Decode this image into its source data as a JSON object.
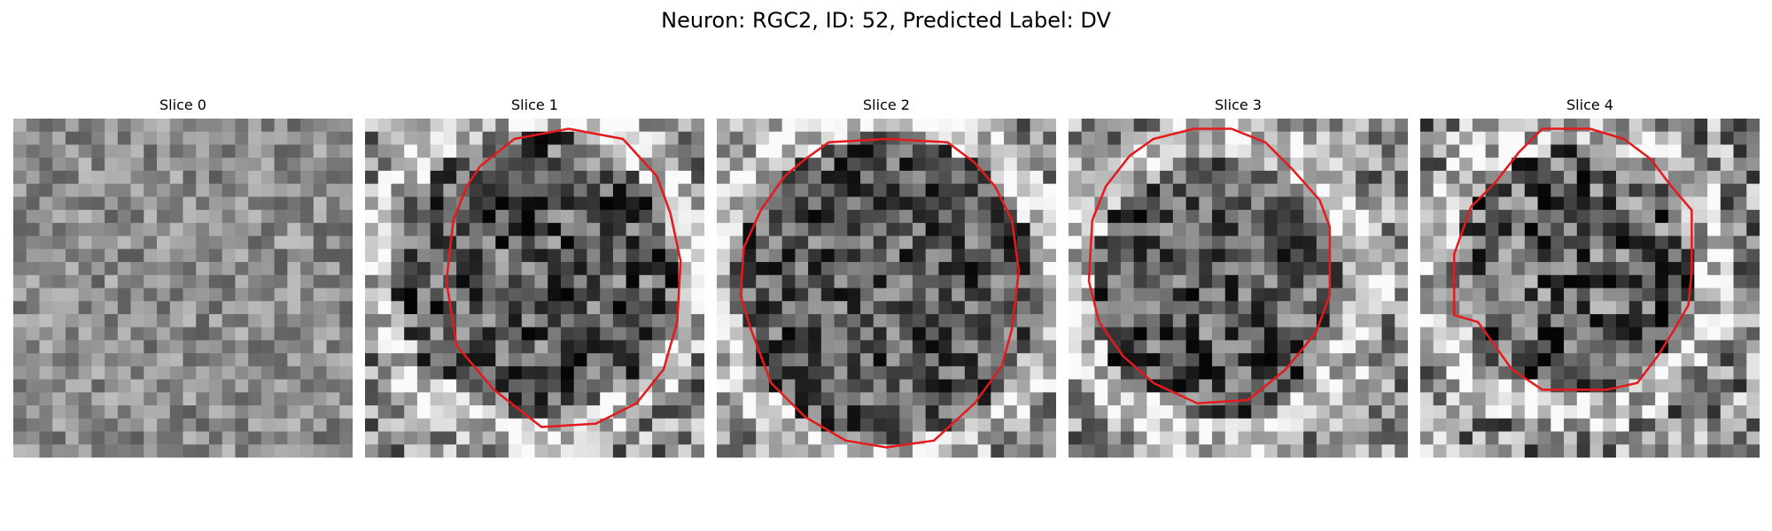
{
  "figure": {
    "title": "Neuron: RGC2, ID: 52, Predicted Label: DV",
    "contour_color": "#e41a1c",
    "colormap": "gray"
  },
  "panels": [
    {
      "title": "Slice 0",
      "has_contour": false,
      "seed": 11,
      "blob": [
        0.5,
        0.5,
        0.0
      ],
      "contrast": 0.25,
      "contour": []
    },
    {
      "title": "Slice 1",
      "has_contour": true,
      "seed": 23,
      "blob": [
        0.5,
        0.45,
        0.42
      ],
      "contrast": 0.45,
      "contour": [
        [
          0.44,
          0.06
        ],
        [
          0.6,
          0.03
        ],
        [
          0.76,
          0.06
        ],
        [
          0.86,
          0.17
        ],
        [
          0.9,
          0.28
        ],
        [
          0.93,
          0.42
        ],
        [
          0.92,
          0.6
        ],
        [
          0.88,
          0.74
        ],
        [
          0.8,
          0.84
        ],
        [
          0.68,
          0.9
        ],
        [
          0.52,
          0.91
        ],
        [
          0.38,
          0.8
        ],
        [
          0.27,
          0.67
        ],
        [
          0.24,
          0.48
        ],
        [
          0.26,
          0.3
        ],
        [
          0.3,
          0.2
        ],
        [
          0.34,
          0.14
        ]
      ]
    },
    {
      "title": "Slice 2",
      "has_contour": true,
      "seed": 37,
      "blob": [
        0.5,
        0.5,
        0.45
      ],
      "contrast": 0.4,
      "contour": [
        [
          0.33,
          0.07
        ],
        [
          0.5,
          0.06
        ],
        [
          0.68,
          0.07
        ],
        [
          0.76,
          0.13
        ],
        [
          0.82,
          0.2
        ],
        [
          0.87,
          0.3
        ],
        [
          0.89,
          0.45
        ],
        [
          0.87,
          0.62
        ],
        [
          0.84,
          0.73
        ],
        [
          0.76,
          0.84
        ],
        [
          0.64,
          0.95
        ],
        [
          0.5,
          0.97
        ],
        [
          0.38,
          0.95
        ],
        [
          0.26,
          0.88
        ],
        [
          0.16,
          0.78
        ],
        [
          0.1,
          0.62
        ],
        [
          0.07,
          0.52
        ],
        [
          0.08,
          0.38
        ],
        [
          0.13,
          0.27
        ],
        [
          0.2,
          0.17
        ],
        [
          0.26,
          0.12
        ]
      ]
    },
    {
      "title": "Slice 3",
      "has_contour": true,
      "seed": 41,
      "blob": [
        0.45,
        0.5,
        0.38
      ],
      "contrast": 0.42,
      "contour": [
        [
          0.25,
          0.06
        ],
        [
          0.37,
          0.03
        ],
        [
          0.48,
          0.03
        ],
        [
          0.58,
          0.07
        ],
        [
          0.66,
          0.15
        ],
        [
          0.74,
          0.24
        ],
        [
          0.77,
          0.32
        ],
        [
          0.77,
          0.52
        ],
        [
          0.73,
          0.63
        ],
        [
          0.64,
          0.74
        ],
        [
          0.53,
          0.83
        ],
        [
          0.38,
          0.84
        ],
        [
          0.25,
          0.78
        ],
        [
          0.16,
          0.7
        ],
        [
          0.09,
          0.6
        ],
        [
          0.06,
          0.48
        ],
        [
          0.07,
          0.3
        ],
        [
          0.11,
          0.2
        ],
        [
          0.18,
          0.11
        ]
      ]
    },
    {
      "title": "Slice 4",
      "has_contour": true,
      "seed": 53,
      "blob": [
        0.45,
        0.45,
        0.36
      ],
      "contrast": 0.5,
      "contour": [
        [
          0.36,
          0.03
        ],
        [
          0.5,
          0.03
        ],
        [
          0.6,
          0.06
        ],
        [
          0.68,
          0.12
        ],
        [
          0.74,
          0.2
        ],
        [
          0.8,
          0.27
        ],
        [
          0.8,
          0.45
        ],
        [
          0.79,
          0.55
        ],
        [
          0.75,
          0.62
        ],
        [
          0.7,
          0.7
        ],
        [
          0.64,
          0.78
        ],
        [
          0.55,
          0.8
        ],
        [
          0.36,
          0.8
        ],
        [
          0.27,
          0.74
        ],
        [
          0.17,
          0.6
        ],
        [
          0.1,
          0.58
        ],
        [
          0.1,
          0.4
        ],
        [
          0.15,
          0.26
        ],
        [
          0.22,
          0.19
        ],
        [
          0.29,
          0.1
        ]
      ]
    }
  ]
}
